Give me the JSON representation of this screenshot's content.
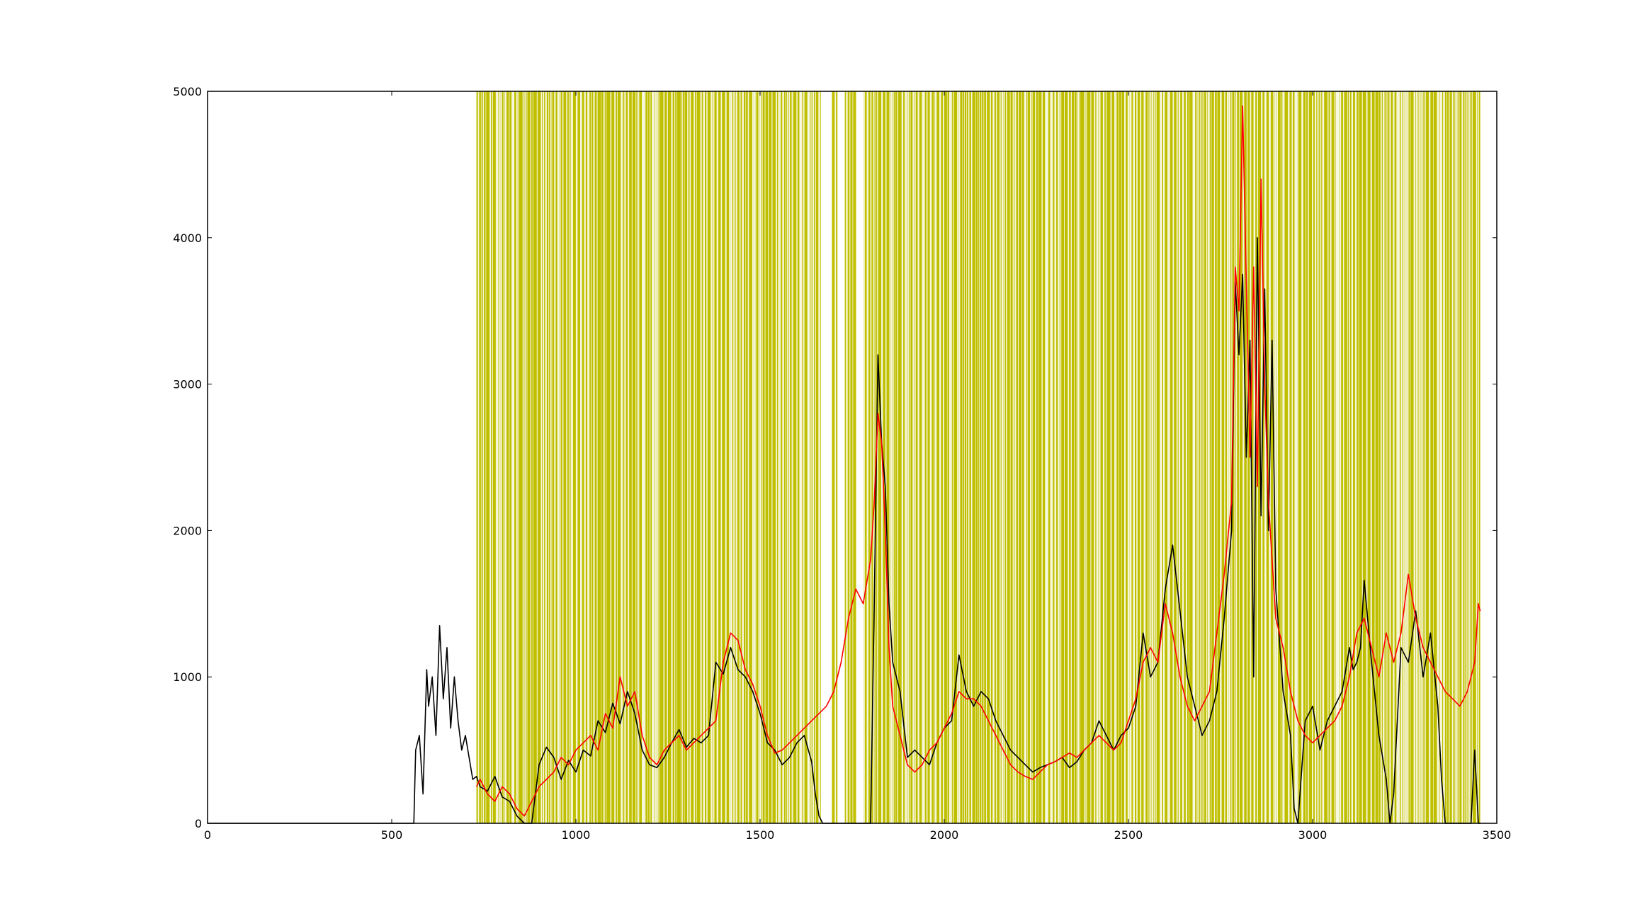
{
  "chart_data": {
    "type": "line",
    "title": "",
    "xlabel": "",
    "ylabel": "",
    "xlim": [
      0,
      3500
    ],
    "ylim": [
      0,
      5000
    ],
    "grid": false,
    "legend": "none",
    "x_ticks": [
      0,
      500,
      1000,
      1500,
      2000,
      2500,
      3000,
      3500
    ],
    "y_ticks": [
      0,
      1000,
      2000,
      3000,
      4000,
      5000
    ],
    "x_tick_labels": [
      "0",
      "500",
      "1000",
      "1500",
      "2000",
      "2500",
      "3000",
      "3500"
    ],
    "y_tick_labels": [
      "0",
      "1000",
      "2000",
      "3000",
      "4000",
      "5000"
    ],
    "shaded_band": {
      "color": "#bfbf00",
      "x_start": 730,
      "x_end": 3455,
      "white_gaps_major": [
        [
          1665,
          1695
        ],
        [
          1710,
          1730
        ],
        [
          1762,
          1782
        ]
      ]
    },
    "series": [
      {
        "color": "#000000",
        "x": [
          0,
          560,
          565,
          575,
          585,
          595,
          600,
          610,
          620,
          630,
          640,
          650,
          660,
          670,
          680,
          690,
          700,
          710,
          720,
          730,
          740,
          760,
          780,
          800,
          820,
          840,
          860,
          880,
          900,
          920,
          940,
          960,
          980,
          1000,
          1020,
          1040,
          1060,
          1080,
          1100,
          1120,
          1140,
          1160,
          1180,
          1200,
          1220,
          1240,
          1260,
          1280,
          1300,
          1320,
          1340,
          1360,
          1380,
          1400,
          1420,
          1440,
          1460,
          1480,
          1500,
          1520,
          1540,
          1560,
          1580,
          1600,
          1620,
          1640,
          1650,
          1660,
          1670,
          1680,
          1800,
          1810,
          1820,
          1830,
          1840,
          1850,
          1860,
          1880,
          1900,
          1920,
          1940,
          1960,
          1980,
          2000,
          2020,
          2040,
          2060,
          2080,
          2100,
          2120,
          2140,
          2160,
          2180,
          2200,
          2220,
          2240,
          2260,
          2280,
          2300,
          2320,
          2340,
          2360,
          2380,
          2400,
          2420,
          2440,
          2460,
          2480,
          2500,
          2520,
          2540,
          2560,
          2580,
          2600,
          2620,
          2640,
          2660,
          2680,
          2700,
          2720,
          2740,
          2760,
          2780,
          2790,
          2800,
          2810,
          2820,
          2830,
          2840,
          2850,
          2860,
          2870,
          2880,
          2890,
          2900,
          2920,
          2940,
          2950,
          2960,
          2980,
          3000,
          3020,
          3040,
          3060,
          3080,
          3100,
          3110,
          3120,
          3130,
          3140,
          3160,
          3180,
          3200,
          3210,
          3220,
          3240,
          3260,
          3280,
          3300,
          3320,
          3340,
          3350,
          3360,
          3380,
          3430,
          3440,
          3450,
          3455
        ],
        "y": [
          0,
          0,
          500,
          600,
          200,
          1050,
          800,
          1000,
          600,
          1350,
          850,
          1200,
          650,
          1000,
          700,
          500,
          600,
          450,
          300,
          320,
          250,
          220,
          320,
          180,
          150,
          50,
          0,
          0,
          400,
          520,
          450,
          300,
          430,
          350,
          500,
          460,
          700,
          620,
          820,
          680,
          900,
          750,
          500,
          400,
          380,
          450,
          550,
          640,
          520,
          580,
          550,
          600,
          1100,
          1020,
          1200,
          1050,
          1000,
          900,
          750,
          550,
          500,
          400,
          450,
          550,
          600,
          420,
          200,
          50,
          0,
          0,
          0,
          1500,
          3200,
          2600,
          2300,
          1500,
          1100,
          900,
          450,
          500,
          450,
          400,
          550,
          650,
          700,
          1150,
          900,
          800,
          900,
          850,
          700,
          600,
          500,
          450,
          400,
          350,
          380,
          400,
          420,
          450,
          380,
          420,
          500,
          550,
          700,
          600,
          500,
          600,
          650,
          800,
          1300,
          1000,
          1100,
          1600,
          1900,
          1450,
          1000,
          800,
          600,
          700,
          900,
          1400,
          2000,
          3700,
          3200,
          3750,
          2500,
          3300,
          1000,
          4000,
          2100,
          3650,
          2000,
          3300,
          1600,
          900,
          600,
          100,
          0,
          700,
          800,
          500,
          700,
          800,
          900,
          1200,
          1050,
          1100,
          1200,
          1660,
          1100,
          600,
          300,
          0,
          200,
          1200,
          1100,
          1450,
          1000,
          1300,
          800,
          300,
          0,
          0,
          0,
          500,
          0,
          0
        ],
        "name": ""
      },
      {
        "color": "#ff0000",
        "x": [
          730,
          740,
          760,
          780,
          800,
          820,
          840,
          860,
          880,
          900,
          920,
          940,
          960,
          980,
          1000,
          1020,
          1040,
          1060,
          1080,
          1100,
          1120,
          1140,
          1160,
          1180,
          1200,
          1220,
          1240,
          1260,
          1280,
          1300,
          1320,
          1340,
          1360,
          1380,
          1400,
          1420,
          1440,
          1460,
          1480,
          1500,
          1520,
          1540,
          1560,
          1580,
          1600,
          1620,
          1640,
          1660,
          1680,
          1700,
          1720,
          1740,
          1760,
          1780,
          1800,
          1810,
          1820,
          1830,
          1840,
          1850,
          1860,
          1880,
          1900,
          1920,
          1940,
          1960,
          1980,
          2000,
          2020,
          2040,
          2060,
          2080,
          2100,
          2120,
          2140,
          2160,
          2180,
          2200,
          2220,
          2240,
          2260,
          2280,
          2300,
          2320,
          2340,
          2360,
          2380,
          2400,
          2420,
          2440,
          2460,
          2480,
          2500,
          2520,
          2540,
          2560,
          2580,
          2600,
          2620,
          2640,
          2660,
          2680,
          2700,
          2720,
          2740,
          2760,
          2780,
          2790,
          2800,
          2810,
          2820,
          2830,
          2840,
          2850,
          2860,
          2870,
          2880,
          2890,
          2900,
          2920,
          2940,
          2960,
          2980,
          3000,
          3020,
          3040,
          3060,
          3080,
          3100,
          3120,
          3140,
          3160,
          3180,
          3200,
          3220,
          3240,
          3260,
          3280,
          3300,
          3320,
          3340,
          3360,
          3380,
          3400,
          3420,
          3440,
          3450,
          3455
        ],
        "y": [
          250,
          300,
          200,
          150,
          250,
          200,
          100,
          50,
          150,
          250,
          300,
          350,
          450,
          400,
          500,
          550,
          600,
          500,
          750,
          650,
          1000,
          800,
          900,
          600,
          450,
          400,
          500,
          550,
          600,
          500,
          550,
          600,
          650,
          700,
          1100,
          1300,
          1250,
          1050,
          950,
          800,
          600,
          480,
          500,
          550,
          600,
          650,
          700,
          750,
          800,
          900,
          1100,
          1400,
          1600,
          1500,
          1800,
          2200,
          2800,
          2600,
          2000,
          1200,
          800,
          600,
          400,
          350,
          400,
          500,
          550,
          650,
          750,
          900,
          850,
          850,
          800,
          700,
          600,
          500,
          400,
          350,
          320,
          300,
          350,
          400,
          420,
          450,
          480,
          450,
          500,
          550,
          600,
          550,
          500,
          550,
          700,
          850,
          1100,
          1200,
          1100,
          1500,
          1300,
          1000,
          800,
          700,
          800,
          900,
          1300,
          1700,
          2200,
          3800,
          3500,
          4900,
          3700,
          2500,
          3800,
          2300,
          4400,
          3000,
          2200,
          1800,
          1400,
          1200,
          900,
          700,
          600,
          550,
          600,
          650,
          700,
          800,
          1000,
          1300,
          1400,
          1200,
          1000,
          1300,
          1100,
          1300,
          1700,
          1400,
          1200,
          1100,
          1000,
          900,
          850,
          800,
          900,
          1100,
          1500,
          1450
        ]
      }
    ]
  }
}
